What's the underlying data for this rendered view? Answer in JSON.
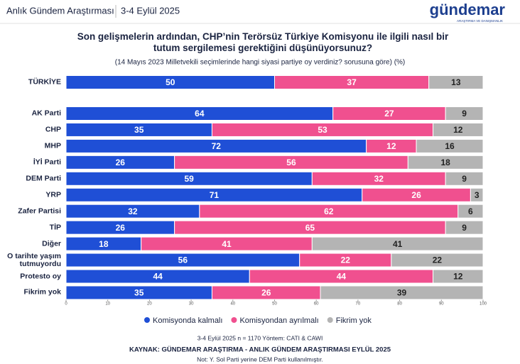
{
  "header": {
    "study": "Anlık Gündem Araştırması",
    "date": "3-4 Eylül 2025",
    "logo": "gündemar",
    "logo_tagline": "ARAŞTIRMA VE DANIŞMANLIK"
  },
  "chart_data": {
    "type": "stacked_barh",
    "title": "Son gelişmelerin ardından, CHP’nin Terörsüz Türkiye Komisyonu ile ilgili nasıl bir tutum sergilemesi gerektiğini düşünüyorsunuz?",
    "subtitle": "(14 Mayıs 2023 Milletvekili seçimlerinde hangi siyasi partiye oy verdiniz? sorusuna göre) (%)",
    "categories": [
      "TÜRKİYE",
      "AK Parti",
      "CHP",
      "MHP",
      "İYİ Parti",
      "DEM Parti",
      "YRP",
      "Zafer Partisi",
      "TİP",
      "Diğer",
      "O tarihte yaşım tutmuyordu",
      "Protesto oy",
      "Fikrim yok"
    ],
    "series": [
      {
        "name": "Komisyonda kalmalı",
        "color": "#1f4fd6",
        "label_color": "#ffffff",
        "values": [
          50,
          64,
          35,
          72,
          26,
          59,
          71,
          32,
          26,
          18,
          56,
          44,
          35
        ]
      },
      {
        "name": "Komisyondan ayrılmalı",
        "color": "#f0508f",
        "label_color": "#ffffff",
        "values": [
          37,
          27,
          53,
          12,
          56,
          32,
          26,
          62,
          65,
          41,
          22,
          44,
          26
        ]
      },
      {
        "name": "Fikrim yok",
        "color": "#b4b4b4",
        "label_color": "#222222",
        "values": [
          13,
          9,
          12,
          16,
          18,
          9,
          3,
          6,
          9,
          41,
          22,
          12,
          39
        ]
      }
    ],
    "xlim": [
      0,
      100
    ],
    "xticks": [
      0,
      10,
      20,
      30,
      40,
      50,
      60,
      70,
      80,
      90,
      100
    ],
    "legend": "bottom",
    "notes": [
      "3-4 Eylül 2025 n = 1170 Yöntem: CATI & CAWI",
      "KAYNAK: GÜNDEMAR ARAŞTIRMA - ANLIK GÜNDEM ARAŞTIRMASI EYLÜL 2025",
      "Not: Y. Sol Parti yerine DEM Parti kullanılmıştır."
    ]
  }
}
